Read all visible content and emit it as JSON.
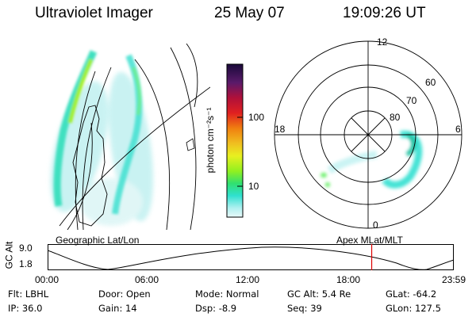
{
  "header": {
    "instrument": "Ultraviolet Imager",
    "date": "25 May 07",
    "time": "19:09:26 UT"
  },
  "colorbar": {
    "unit_label": "photon cm⁻²s⁻¹",
    "ticks": [
      {
        "value": 100,
        "label": "100"
      },
      {
        "value": 10,
        "label": "10"
      }
    ],
    "colors": [
      "#1a0a3a",
      "#5a1a6a",
      "#b0103a",
      "#e02020",
      "#f08010",
      "#f0c020",
      "#e8f020",
      "#90f020",
      "#30e070",
      "#30e0d0",
      "#b0f0f0",
      "#e8f8f8"
    ]
  },
  "polar_plot": {
    "mlt_labels": {
      "top": "12",
      "left": "18",
      "right": "6",
      "bottom": "0"
    },
    "lat_labels": [
      "60",
      "70",
      "80"
    ]
  },
  "panel_titles": {
    "left": "Geographic Lat/Lon",
    "right": "Apex MLat/MLT"
  },
  "altitude_chart": {
    "ylabel": "GC Alt",
    "y_ticks": [
      "9.0",
      "1.8"
    ],
    "x_ticks": [
      "00:00",
      "06:00",
      "12:00",
      "18:00",
      "23:59"
    ],
    "current_time_marker_hours": 19.15,
    "marker_color": "#dd0000"
  },
  "status": {
    "row1": [
      {
        "key": "Flt:",
        "value": "LBHL"
      },
      {
        "key": "Door:",
        "value": "Open"
      },
      {
        "key": "Mode:",
        "value": "Normal"
      },
      {
        "key": "GC Alt:",
        "value": "5.4 Re"
      },
      {
        "key": "GLat:",
        "value": "-64.2"
      }
    ],
    "row2": [
      {
        "key": "IP:",
        "value": "36.0"
      },
      {
        "key": "Gain:",
        "value": "14"
      },
      {
        "key": "Dsp:",
        "value": "-8.9"
      },
      {
        "key": "Seq:",
        "value": "39"
      },
      {
        "key": "GLon:",
        "value": "127.5"
      }
    ]
  }
}
